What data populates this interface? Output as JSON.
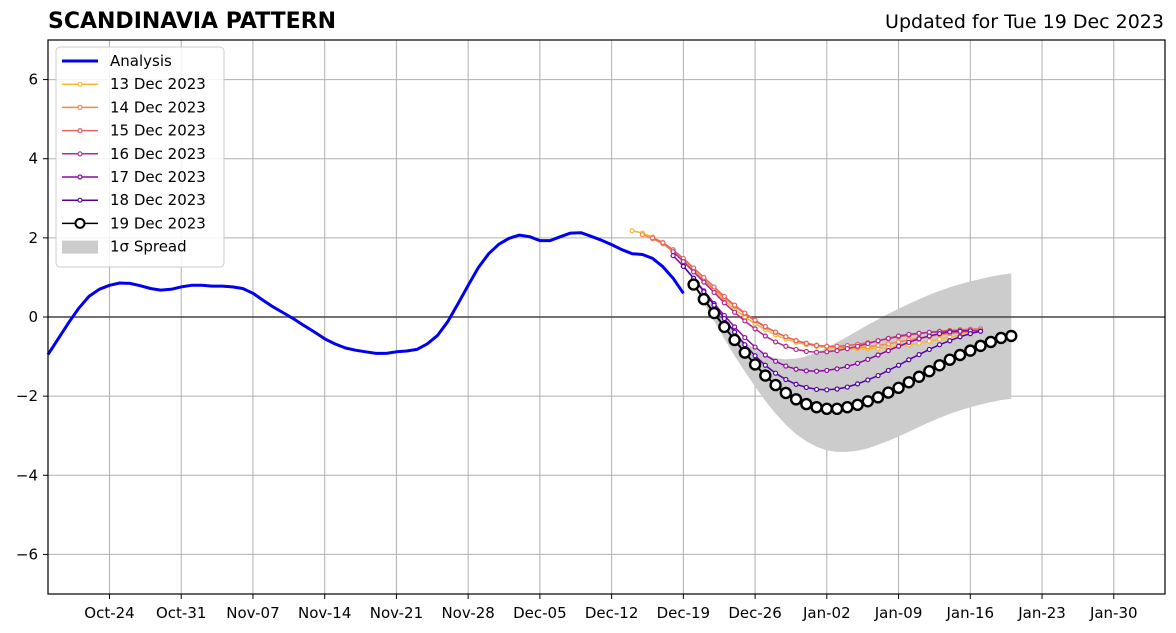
{
  "chart_data": {
    "type": "line",
    "title": "SCANDINAVIA PATTERN",
    "subtitle": "Updated for Tue 19 Dec 2023",
    "xlabel": "",
    "ylabel": "",
    "x_axis": {
      "type": "date",
      "range": [
        "2023-10-18",
        "2024-02-04"
      ],
      "tick_dates": [
        "2023-10-24",
        "2023-10-31",
        "2023-11-07",
        "2023-11-14",
        "2023-11-21",
        "2023-11-28",
        "2023-12-05",
        "2023-12-12",
        "2023-12-19",
        "2023-12-26",
        "2024-01-02",
        "2024-01-09",
        "2024-01-16",
        "2024-01-23",
        "2024-01-30"
      ],
      "tick_labels": [
        "Oct-24",
        "Oct-31",
        "Nov-07",
        "Nov-14",
        "Nov-21",
        "Nov-28",
        "Dec-05",
        "Dec-12",
        "Dec-19",
        "Dec-26",
        "Jan-02",
        "Jan-09",
        "Jan-16",
        "Jan-23",
        "Jan-30"
      ]
    },
    "y_axis": {
      "range": [
        -7,
        7
      ],
      "ticks": [
        -6,
        -4,
        -2,
        0,
        2,
        4,
        6
      ],
      "tick_labels": [
        "−6",
        "−4",
        "−2",
        "0",
        "2",
        "4",
        "6"
      ]
    },
    "grid": true,
    "zero_line": true,
    "legend": {
      "position": "top-left",
      "entries": [
        "Analysis",
        "13 Dec 2023",
        "14 Dec 2023",
        "15 Dec 2023",
        "16 Dec 2023",
        "17 Dec 2023",
        "18 Dec 2023",
        "19 Dec 2023",
        "1σ Spread"
      ]
    },
    "analysis": {
      "name": "Analysis",
      "color": "#0000ee",
      "start": "2023-10-18",
      "step_days": 1,
      "values": [
        -0.95,
        -0.55,
        -0.15,
        0.22,
        0.52,
        0.7,
        0.8,
        0.86,
        0.85,
        0.79,
        0.72,
        0.68,
        0.7,
        0.76,
        0.8,
        0.8,
        0.78,
        0.78,
        0.76,
        0.72,
        0.6,
        0.42,
        0.25,
        0.1,
        -0.05,
        -0.22,
        -0.38,
        -0.55,
        -0.68,
        -0.78,
        -0.84,
        -0.88,
        -0.92,
        -0.92,
        -0.88,
        -0.86,
        -0.82,
        -0.68,
        -0.47,
        -0.12,
        0.33,
        0.8,
        1.25,
        1.6,
        1.84,
        1.99,
        2.07,
        2.03,
        1.93,
        1.93,
        2.03,
        2.12,
        2.13,
        2.04,
        1.94,
        1.83,
        1.7,
        1.6,
        1.58,
        1.48,
        1.27,
        0.98,
        0.6
      ]
    },
    "forecasts": [
      {
        "name": "13 Dec 2023",
        "color": "#fdb42f",
        "start": "2023-12-14",
        "step_days": 1,
        "values": [
          2.18,
          2.12,
          2.02,
          1.88,
          1.68,
          1.44,
          1.18,
          0.92,
          0.66,
          0.42,
          0.2,
          0.0,
          -0.17,
          -0.32,
          -0.45,
          -0.56,
          -0.64,
          -0.7,
          -0.74,
          -0.77,
          -0.79,
          -0.8,
          -0.8,
          -0.8,
          -0.79,
          -0.77,
          -0.74,
          -0.7,
          -0.66,
          -0.61,
          -0.56,
          -0.51,
          -0.46
        ]
      },
      {
        "name": "14 Dec 2023",
        "color": "#f48849",
        "start": "2023-12-15",
        "step_days": 1,
        "values": [
          2.08,
          1.98,
          1.85,
          1.65,
          1.42,
          1.18,
          0.94,
          0.7,
          0.48,
          0.27,
          0.08,
          -0.1,
          -0.26,
          -0.39,
          -0.5,
          -0.59,
          -0.66,
          -0.71,
          -0.74,
          -0.76,
          -0.77,
          -0.77,
          -0.75,
          -0.72,
          -0.68,
          -0.63,
          -0.58,
          -0.53,
          -0.49,
          -0.45,
          -0.42,
          -0.4,
          -0.38
        ]
      },
      {
        "name": "15 Dec 2023",
        "color": "#e16462",
        "start": "2023-12-16",
        "step_days": 1,
        "values": [
          2.0,
          1.88,
          1.7,
          1.48,
          1.24,
          1.0,
          0.76,
          0.52,
          0.3,
          0.1,
          -0.08,
          -0.24,
          -0.38,
          -0.5,
          -0.6,
          -0.67,
          -0.72,
          -0.74,
          -0.74,
          -0.72,
          -0.69,
          -0.65,
          -0.6,
          -0.55,
          -0.5,
          -0.46,
          -0.42,
          -0.39,
          -0.36,
          -0.34,
          -0.32,
          -0.31,
          -0.3
        ]
      },
      {
        "name": "16 Dec 2023",
        "color": "#b12a90",
        "start": "2023-12-18",
        "step_days": 1,
        "values": [
          1.65,
          1.4,
          1.14,
          0.88,
          0.62,
          0.36,
          0.12,
          -0.1,
          -0.3,
          -0.48,
          -0.63,
          -0.74,
          -0.82,
          -0.87,
          -0.89,
          -0.88,
          -0.85,
          -0.8,
          -0.74,
          -0.67,
          -0.6,
          -0.54,
          -0.48,
          -0.44,
          -0.41,
          -0.39,
          -0.37,
          -0.36,
          -0.35,
          -0.35,
          -0.35
        ]
      },
      {
        "name": "17 Dec 2023",
        "color": "#8b0aa5",
        "start": "2023-12-18",
        "step_days": 1,
        "values": [
          1.55,
          1.28,
          0.98,
          0.66,
          0.34,
          0.04,
          -0.25,
          -0.52,
          -0.76,
          -0.96,
          -1.12,
          -1.24,
          -1.32,
          -1.36,
          -1.37,
          -1.35,
          -1.31,
          -1.25,
          -1.17,
          -1.07,
          -0.96,
          -0.85,
          -0.74,
          -0.64,
          -0.55,
          -0.48,
          -0.42,
          -0.38,
          -0.36,
          -0.35
        ]
      },
      {
        "name": "18 Dec 2023",
        "color": "#5302a3",
        "start": "2023-12-19",
        "step_days": 1,
        "values": [
          1.28,
          0.98,
          0.64,
          0.3,
          -0.04,
          -0.38,
          -0.7,
          -0.98,
          -1.22,
          -1.42,
          -1.58,
          -1.7,
          -1.78,
          -1.83,
          -1.84,
          -1.82,
          -1.77,
          -1.69,
          -1.59,
          -1.48,
          -1.35,
          -1.22,
          -1.08,
          -0.95,
          -0.82,
          -0.7,
          -0.6,
          -0.5,
          -0.42,
          -0.36
        ]
      },
      {
        "name": "19 Dec 2023",
        "color": "#000000",
        "start": "2023-12-20",
        "step_days": 1,
        "values": [
          0.82,
          0.45,
          0.1,
          -0.25,
          -0.58,
          -0.9,
          -1.2,
          -1.48,
          -1.72,
          -1.92,
          -2.08,
          -2.2,
          -2.28,
          -2.32,
          -2.32,
          -2.28,
          -2.22,
          -2.13,
          -2.03,
          -1.91,
          -1.79,
          -1.65,
          -1.51,
          -1.37,
          -1.22,
          -1.08,
          -0.96,
          -0.85,
          -0.73,
          -0.63,
          -0.53,
          -0.48
        ]
      }
    ],
    "spread": {
      "name": "1σ Spread",
      "color": "#cccccc",
      "start": "2023-12-20",
      "step_days": 1,
      "upper": [
        0.82,
        0.55,
        0.24,
        -0.08,
        -0.38,
        -0.63,
        -0.82,
        -0.96,
        -1.04,
        -1.07,
        -1.05,
        -0.99,
        -0.9,
        -0.78,
        -0.64,
        -0.5,
        -0.35,
        -0.2,
        -0.06,
        0.08,
        0.21,
        0.33,
        0.45,
        0.56,
        0.66,
        0.75,
        0.83,
        0.9,
        0.96,
        1.02,
        1.07,
        1.1
      ],
      "lower": [
        0.82,
        0.35,
        -0.1,
        -0.55,
        -0.98,
        -1.38,
        -1.76,
        -2.12,
        -2.44,
        -2.72,
        -2.96,
        -3.14,
        -3.28,
        -3.37,
        -3.41,
        -3.41,
        -3.38,
        -3.32,
        -3.23,
        -3.13,
        -3.02,
        -2.9,
        -2.78,
        -2.66,
        -2.55,
        -2.45,
        -2.36,
        -2.28,
        -2.21,
        -2.15,
        -2.1,
        -2.07
      ]
    }
  }
}
